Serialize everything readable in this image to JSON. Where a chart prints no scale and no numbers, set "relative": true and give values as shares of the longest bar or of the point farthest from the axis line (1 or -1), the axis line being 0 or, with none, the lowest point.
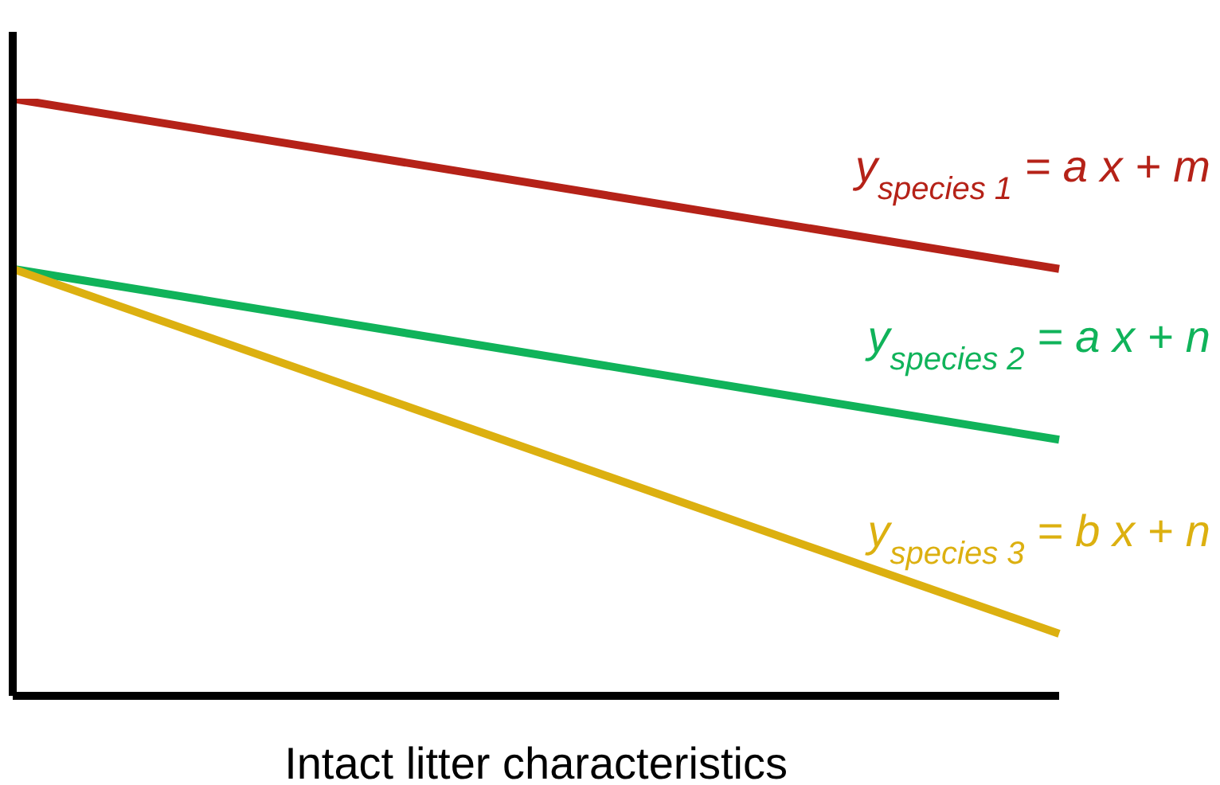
{
  "chart_data": {
    "type": "line",
    "relative": true,
    "xlabel": "Intact litter characteristics",
    "categories": [
      null,
      null
    ],
    "marker": "none",
    "ref_lines": [
      {
        "axis": "y",
        "value": 0,
        "color": "#000000"
      }
    ],
    "series": [
      {
        "name": "y$_{species 1}$ = a x + m",
        "color": "#b52218",
        "values": [
          1,
          0.715
        ]
      },
      {
        "name": "y$_{species 2}$ = a x + n",
        "color": "#10b35a",
        "values": [
          0.715,
          0.429
        ]
      },
      {
        "name": "y$_{species 3}$ = b x + n",
        "color": "#dcb010",
        "values": [
          0.715,
          0.104
        ]
      }
    ]
  }
}
